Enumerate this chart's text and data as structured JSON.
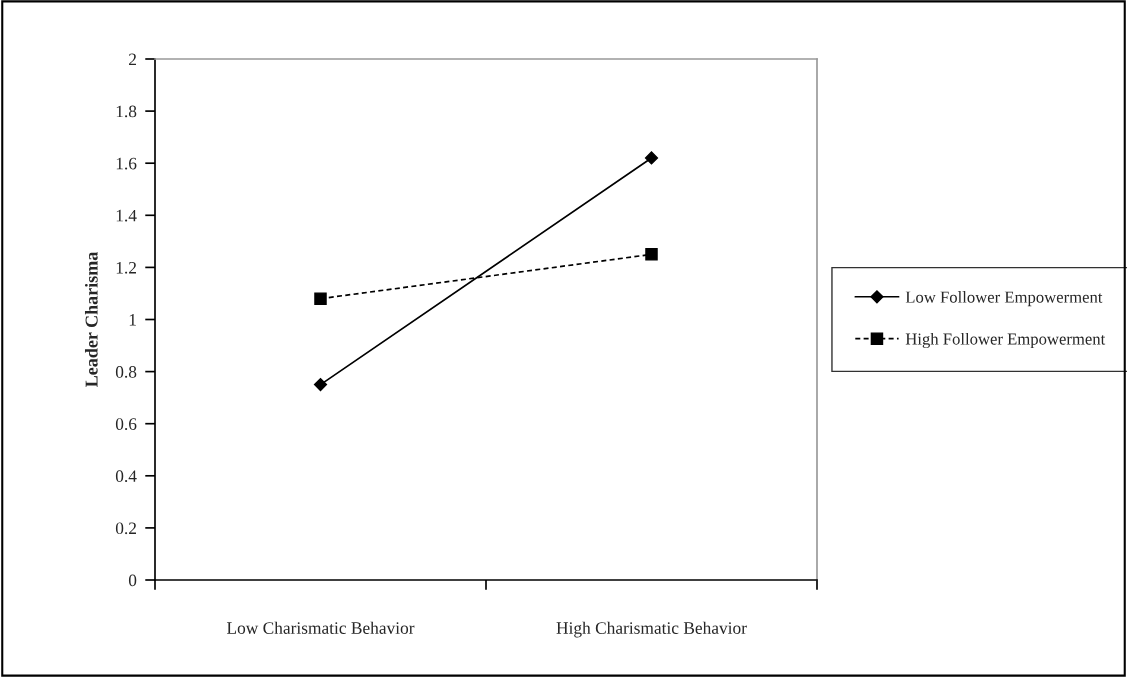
{
  "chart_data": {
    "type": "line",
    "ylabel": "Leader Charisma",
    "categories": [
      "Low Charismatic Behavior",
      "High Charismatic Behavior"
    ],
    "series": [
      {
        "name": "Low Follower Empowerment",
        "color": "#000000",
        "values": [
          0.75,
          1.62
        ],
        "marker": "diamond",
        "line_style": "solid"
      },
      {
        "name": "High Follower Empowerment",
        "color": "#000000",
        "values": [
          1.08,
          1.25
        ],
        "marker": "square",
        "line_style": "dashed"
      }
    ],
    "ylim": [
      0,
      2
    ],
    "yticks": [
      0,
      0.2,
      0.4,
      0.6,
      0.8,
      1,
      1.2,
      1.4,
      1.6,
      1.8,
      2
    ],
    "grid": false,
    "legend": "right"
  }
}
